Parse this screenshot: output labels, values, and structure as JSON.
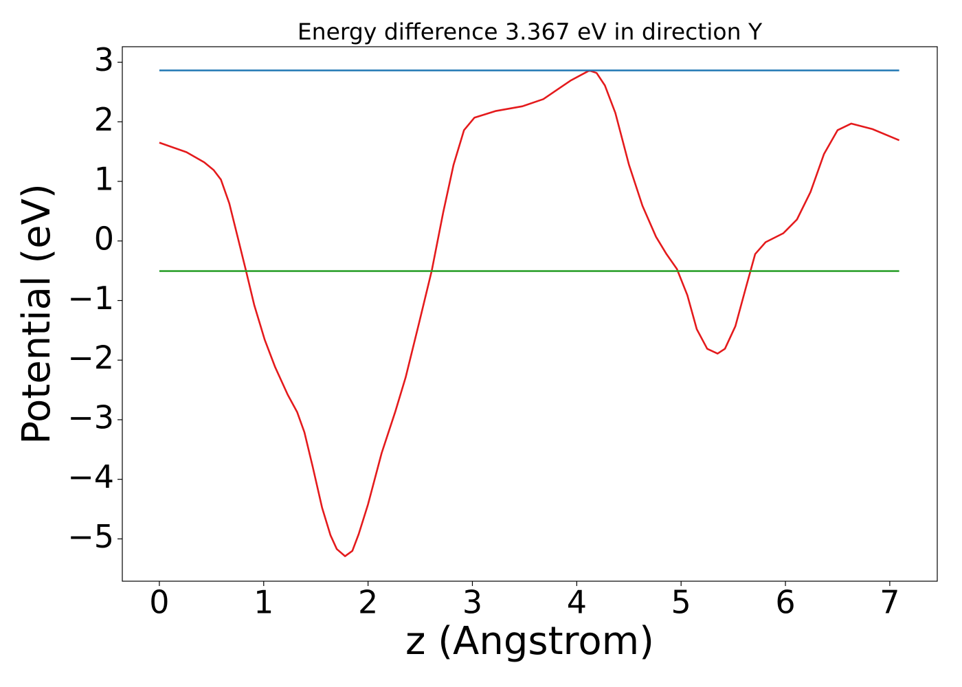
{
  "chart_data": {
    "type": "line",
    "title": "Energy difference 3.367 eV in direction Y",
    "x_label": "z (Angstrom)",
    "y_label": "Potential (eV)",
    "xlim": [
      -0.355,
      7.455
    ],
    "ylim": [
      -5.71,
      3.26
    ],
    "xticks": [
      0,
      1,
      2,
      3,
      4,
      5,
      6,
      7
    ],
    "yticks": [
      {
        "value": -5,
        "label": "−5"
      },
      {
        "value": -4,
        "label": "−4"
      },
      {
        "value": -3,
        "label": "−3"
      },
      {
        "value": -2,
        "label": "−2"
      },
      {
        "value": -1,
        "label": "−1"
      },
      0,
      1,
      2,
      3
    ],
    "grid": false,
    "series": [
      {
        "color": "#e41a1c",
        "x": [
          0,
          0.26,
          0.43,
          0.52,
          0.59,
          0.67,
          0.75,
          0.83,
          0.91,
          1.01,
          1.11,
          1.23,
          1.32,
          1.39,
          1.47,
          1.56,
          1.64,
          1.7,
          1.78,
          1.85,
          1.91,
          2.0,
          2.13,
          2.26,
          2.36,
          2.49,
          2.61,
          2.72,
          2.82,
          2.92,
          3.02,
          3.22,
          3.48,
          3.68,
          3.94,
          4.12,
          4.19,
          4.27,
          4.37,
          4.5,
          4.63,
          4.76,
          4.86,
          4.96,
          5.06,
          5.15,
          5.25,
          5.35,
          5.42,
          5.52,
          5.62,
          5.71,
          5.81,
          5.98,
          6.11,
          6.24,
          6.37,
          6.5,
          6.63,
          6.83,
          7.09
        ],
        "values": [
          1.65,
          1.49,
          1.32,
          1.19,
          1.03,
          0.63,
          0.07,
          -0.5,
          -1.08,
          -1.66,
          -2.12,
          -2.58,
          -2.87,
          -3.21,
          -3.79,
          -4.48,
          -4.94,
          -5.17,
          -5.29,
          -5.2,
          -4.92,
          -4.42,
          -3.56,
          -2.87,
          -2.29,
          -1.37,
          -0.5,
          0.48,
          1.28,
          1.86,
          2.07,
          2.18,
          2.26,
          2.38,
          2.69,
          2.86,
          2.82,
          2.61,
          2.15,
          1.28,
          0.59,
          0.07,
          -0.22,
          -0.47,
          -0.91,
          -1.48,
          -1.81,
          -1.89,
          -1.81,
          -1.43,
          -0.79,
          -0.22,
          -0.02,
          0.13,
          0.36,
          0.82,
          1.46,
          1.86,
          1.97,
          1.88,
          1.69
        ]
      },
      {
        "color": "#1f77b4",
        "x": [
          0,
          7.09
        ],
        "values": [
          2.862,
          2.862
        ]
      },
      {
        "color": "#2ca02c",
        "x": [
          0,
          7.09
        ],
        "values": [
          -0.505,
          -0.505
        ]
      }
    ]
  }
}
